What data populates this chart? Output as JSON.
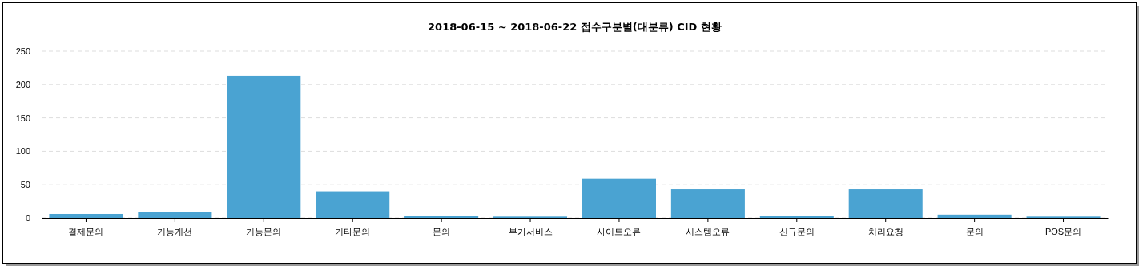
{
  "chart_data": {
    "type": "bar",
    "title": "2018-06-15 ~ 2018-06-22 접수구분별(대분류) CID 현황",
    "categories": [
      "결제문의",
      "기능개선",
      "기능문의",
      "기타문의",
      "문의",
      "부가서비스",
      "사이트오류",
      "시스템오류",
      "신규문의",
      "처리요청",
      "문의",
      "POS문의"
    ],
    "values": [
      6,
      9,
      213,
      40,
      3,
      2,
      59,
      43,
      3,
      43,
      5,
      2
    ],
    "color": "#4aa3d2",
    "ylim": [
      0,
      250
    ],
    "yticks": [
      0,
      50,
      100,
      150,
      200,
      250
    ],
    "grid": "y"
  }
}
